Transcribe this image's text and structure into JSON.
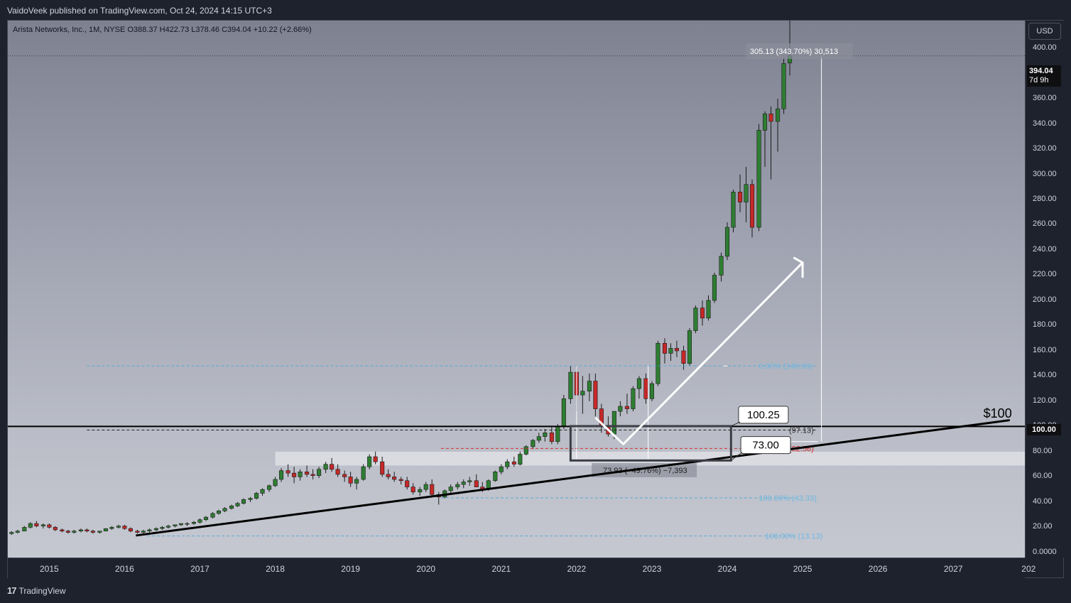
{
  "header": {
    "publisher": "VaidoVeek published on TradingView.com, Oct 24, 2024 14:15 UTC+3"
  },
  "symbol": {
    "line": "Arista Networks, Inc., 1M, NYSE  O388.37  H422.73  L378.46  C394.04  +10.22 (+2.66%)"
  },
  "toolbar": {
    "currency": "USD"
  },
  "price_tags": {
    "last_price": "394.04",
    "countdown": "7d 9h",
    "level": "100.00"
  },
  "footer": {
    "brand": "TradingView",
    "brand_mark": "17"
  },
  "colors": {
    "up": "#26a69a",
    "up_candle": "#2e7d32",
    "down": "#c62828",
    "trendline": "#000000",
    "fib_line": "#5aa9d6"
  },
  "chart_data": {
    "type": "candlestick",
    "title": "Arista Networks, Inc., 1M, NYSE",
    "ylim": [
      -4,
      422
    ],
    "xlim": [
      2014.45,
      2027.95
    ],
    "y_ticks": [
      "0.0000",
      "20.00",
      "40.00",
      "60.00",
      "80.00",
      "100.00",
      "120.00",
      "140.00",
      "160.00",
      "180.00",
      "200.00",
      "220.00",
      "240.00",
      "260.00",
      "280.00",
      "300.00",
      "320.00",
      "340.00",
      "360.00",
      "380.00",
      "400.00"
    ],
    "x_ticks": [
      "2015",
      "2016",
      "2017",
      "2018",
      "2019",
      "2020",
      "2021",
      "2022",
      "2023",
      "2024",
      "2025",
      "2026",
      "2027",
      "202"
    ],
    "candles": [
      [
        2014.5,
        15,
        17,
        14,
        16
      ],
      [
        2014.58,
        16,
        18,
        15,
        17
      ],
      [
        2014.67,
        17,
        21,
        17,
        20
      ],
      [
        2014.75,
        20,
        24,
        19,
        23
      ],
      [
        2014.83,
        23,
        25,
        20,
        21
      ],
      [
        2014.92,
        21,
        23,
        19,
        22
      ],
      [
        2015.0,
        22,
        23,
        19,
        20
      ],
      [
        2015.08,
        20,
        21,
        17,
        18
      ],
      [
        2015.17,
        18,
        19,
        16,
        17
      ],
      [
        2015.25,
        17,
        18,
        15,
        16
      ],
      [
        2015.33,
        16,
        18,
        15,
        17
      ],
      [
        2015.42,
        17,
        19,
        16,
        18
      ],
      [
        2015.5,
        18,
        19,
        16,
        17
      ],
      [
        2015.58,
        17,
        18,
        15,
        16
      ],
      [
        2015.67,
        16,
        17,
        15,
        17
      ],
      [
        2015.75,
        17,
        19,
        17,
        19
      ],
      [
        2015.83,
        19,
        21,
        18,
        20
      ],
      [
        2015.92,
        20,
        22,
        19,
        21
      ],
      [
        2016.0,
        21,
        22,
        18,
        19
      ],
      [
        2016.08,
        19,
        20,
        16,
        17
      ],
      [
        2016.17,
        17,
        18,
        15,
        16
      ],
      [
        2016.25,
        16,
        18,
        15,
        17
      ],
      [
        2016.33,
        17,
        19,
        16,
        18
      ],
      [
        2016.42,
        18,
        20,
        17,
        19
      ],
      [
        2016.5,
        19,
        21,
        18,
        20
      ],
      [
        2016.58,
        20,
        22,
        19,
        21
      ],
      [
        2016.67,
        21,
        22,
        20,
        22
      ],
      [
        2016.75,
        22,
        23,
        21,
        23
      ],
      [
        2016.83,
        23,
        24,
        21,
        23
      ],
      [
        2016.92,
        23,
        25,
        22,
        24
      ],
      [
        2017.0,
        24,
        27,
        23,
        26
      ],
      [
        2017.08,
        26,
        29,
        25,
        28
      ],
      [
        2017.17,
        28,
        32,
        27,
        31
      ],
      [
        2017.25,
        31,
        34,
        30,
        33
      ],
      [
        2017.33,
        33,
        36,
        32,
        35
      ],
      [
        2017.42,
        35,
        38,
        34,
        37
      ],
      [
        2017.5,
        37,
        40,
        36,
        39
      ],
      [
        2017.58,
        39,
        43,
        38,
        42
      ],
      [
        2017.67,
        42,
        44,
        40,
        43
      ],
      [
        2017.75,
        43,
        48,
        42,
        47
      ],
      [
        2017.83,
        47,
        51,
        45,
        50
      ],
      [
        2017.92,
        50,
        54,
        48,
        53
      ],
      [
        2018.0,
        53,
        60,
        52,
        58
      ],
      [
        2018.08,
        58,
        67,
        56,
        65
      ],
      [
        2018.17,
        65,
        70,
        60,
        63
      ],
      [
        2018.25,
        63,
        68,
        55,
        60
      ],
      [
        2018.33,
        60,
        66,
        57,
        64
      ],
      [
        2018.42,
        64,
        69,
        60,
        62
      ],
      [
        2018.5,
        62,
        66,
        58,
        61
      ],
      [
        2018.58,
        61,
        68,
        59,
        66
      ],
      [
        2018.67,
        66,
        72,
        63,
        70
      ],
      [
        2018.75,
        70,
        75,
        64,
        66
      ],
      [
        2018.83,
        66,
        70,
        60,
        62
      ],
      [
        2018.92,
        62,
        65,
        56,
        60
      ],
      [
        2019.0,
        60,
        64,
        52,
        55
      ],
      [
        2019.08,
        55,
        60,
        50,
        58
      ],
      [
        2019.17,
        58,
        70,
        57,
        68
      ],
      [
        2019.25,
        68,
        78,
        66,
        76
      ],
      [
        2019.33,
        76,
        80,
        70,
        72
      ],
      [
        2019.42,
        72,
        76,
        60,
        62
      ],
      [
        2019.5,
        62,
        66,
        58,
        60
      ],
      [
        2019.58,
        60,
        64,
        56,
        58
      ],
      [
        2019.67,
        58,
        60,
        54,
        57
      ],
      [
        2019.75,
        57,
        60,
        50,
        52
      ],
      [
        2019.83,
        52,
        55,
        46,
        48
      ],
      [
        2019.92,
        48,
        52,
        45,
        50
      ],
      [
        2020.0,
        50,
        56,
        48,
        54
      ],
      [
        2020.08,
        54,
        58,
        44,
        46
      ],
      [
        2020.17,
        46,
        48,
        38,
        44
      ],
      [
        2020.25,
        44,
        50,
        43,
        49
      ],
      [
        2020.33,
        49,
        54,
        47,
        52
      ],
      [
        2020.42,
        52,
        56,
        50,
        54
      ],
      [
        2020.5,
        54,
        58,
        51,
        56
      ],
      [
        2020.58,
        56,
        60,
        53,
        57
      ],
      [
        2020.67,
        57,
        62,
        54,
        52
      ],
      [
        2020.75,
        52,
        56,
        48,
        50
      ],
      [
        2020.83,
        50,
        58,
        49,
        57
      ],
      [
        2020.92,
        57,
        65,
        56,
        64
      ],
      [
        2021.0,
        64,
        70,
        62,
        68
      ],
      [
        2021.08,
        68,
        74,
        66,
        72
      ],
      [
        2021.17,
        72,
        76,
        68,
        70
      ],
      [
        2021.25,
        70,
        80,
        69,
        78
      ],
      [
        2021.33,
        78,
        85,
        77,
        84
      ],
      [
        2021.42,
        84,
        90,
        82,
        89
      ],
      [
        2021.5,
        89,
        95,
        87,
        92
      ],
      [
        2021.58,
        92,
        98,
        88,
        95
      ],
      [
        2021.67,
        95,
        100,
        86,
        88
      ],
      [
        2021.75,
        88,
        102,
        86,
        100
      ],
      [
        2021.83,
        100,
        125,
        98,
        122
      ],
      [
        2021.92,
        122,
        148,
        118,
        143
      ],
      [
        2022.0,
        143,
        148,
        112,
        125
      ],
      [
        2022.08,
        125,
        140,
        110,
        128
      ],
      [
        2022.17,
        128,
        142,
        120,
        136
      ],
      [
        2022.25,
        136,
        142,
        108,
        114
      ],
      [
        2022.33,
        114,
        118,
        95,
        100
      ],
      [
        2022.42,
        100,
        108,
        92,
        94
      ],
      [
        2022.5,
        94,
        112,
        90,
        112
      ],
      [
        2022.58,
        112,
        120,
        108,
        116
      ],
      [
        2022.67,
        116,
        126,
        110,
        114
      ],
      [
        2022.75,
        114,
        132,
        112,
        130
      ],
      [
        2022.83,
        130,
        140,
        122,
        138
      ],
      [
        2022.92,
        138,
        142,
        118,
        122
      ],
      [
        2023.0,
        122,
        136,
        120,
        134
      ],
      [
        2023.08,
        134,
        168,
        132,
        166
      ],
      [
        2023.17,
        166,
        170,
        150,
        158
      ],
      [
        2023.25,
        158,
        166,
        152,
        162
      ],
      [
        2023.33,
        162,
        168,
        155,
        160
      ],
      [
        2023.42,
        160,
        164,
        145,
        150
      ],
      [
        2023.5,
        150,
        178,
        148,
        176
      ],
      [
        2023.58,
        176,
        196,
        174,
        194
      ],
      [
        2023.67,
        194,
        200,
        180,
        186
      ],
      [
        2023.75,
        186,
        204,
        184,
        200
      ],
      [
        2023.83,
        200,
        222,
        198,
        220
      ],
      [
        2023.92,
        220,
        238,
        215,
        235
      ],
      [
        2024.0,
        235,
        262,
        232,
        258
      ],
      [
        2024.08,
        258,
        288,
        254,
        286
      ],
      [
        2024.17,
        286,
        300,
        270,
        278
      ],
      [
        2024.25,
        278,
        306,
        262,
        292
      ],
      [
        2024.33,
        292,
        296,
        250,
        258
      ],
      [
        2024.42,
        258,
        340,
        255,
        335
      ],
      [
        2024.5,
        335,
        350,
        306,
        348
      ],
      [
        2024.58,
        348,
        354,
        296,
        342
      ],
      [
        2024.67,
        342,
        360,
        318,
        352
      ],
      [
        2024.75,
        352,
        392,
        348,
        388
      ],
      [
        2024.83,
        388.37,
        422.73,
        378.46,
        394.04
      ]
    ],
    "annotations": {
      "measure_top": "305.13 (343.70%) 30,513",
      "measure_bottom": "73.93 (−49.76%) −7,393",
      "fib_labels": [
        "0.00% (148.06)",
        "100.00% (43.33)",
        "100.00% (13.13)",
        "(97.13)",
        "(82.56)"
      ],
      "callout_high": "100.25",
      "callout_low": "73.00",
      "level_label": "$100"
    }
  }
}
